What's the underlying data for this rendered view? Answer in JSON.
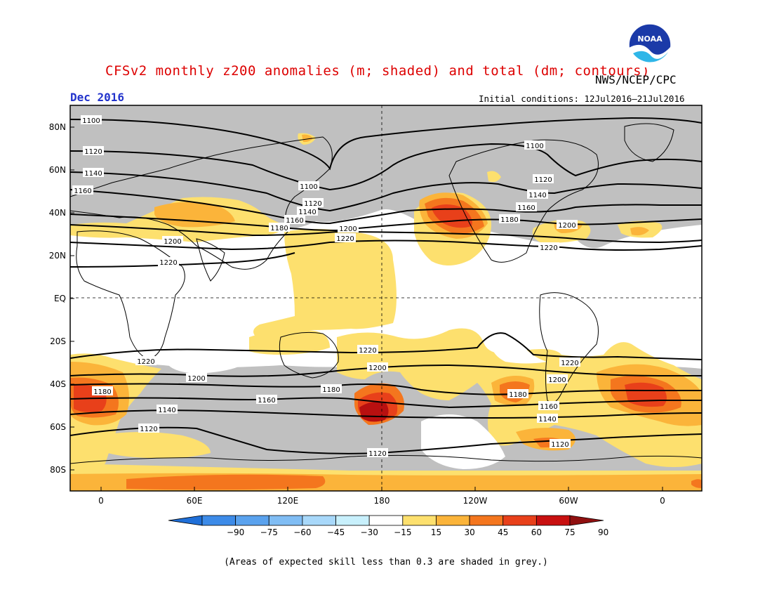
{
  "title": "CFSv2 monthly z200 anomalies (m; shaded) and total (dm; contours)",
  "organization": "NWS/NCEP/CPC",
  "logo_text": "NOAA",
  "month": "Dec 2016",
  "initial_conditions": "Initial conditions: 12Jul2016–21Jul2016",
  "footnote": "(Areas of expected skill less than 0.3 are shaded in grey.)",
  "map": {
    "latitude_labels": [
      "80N",
      "60N",
      "40N",
      "20N",
      "EQ",
      "20S",
      "40S",
      "60S",
      "80S"
    ],
    "longitude_labels": [
      "0",
      "60E",
      "120E",
      "180",
      "120W",
      "60W",
      "0"
    ],
    "contour_labels": [
      "1100",
      "1120",
      "1140",
      "1160",
      "1180",
      "1200",
      "1220"
    ],
    "colors": {
      "grey_low_skill": "#c0c0c0",
      "yellow_15_30": "#fde06e",
      "orange_30_45": "#fbb43a",
      "orange_45_60": "#f4761e",
      "red_60_75": "#e8401a",
      "darkred_75_90": "#b81010"
    }
  },
  "colorbar": {
    "tick_labels": [
      "-90",
      "-75",
      "-60",
      "-45",
      "-30",
      "-15",
      "15",
      "30",
      "45",
      "60",
      "75",
      "90"
    ],
    "colors": [
      "#1f6fd8",
      "#3d8be8",
      "#5aa2ee",
      "#80bdf4",
      "#a8d8fa",
      "#c8f0fc",
      "#ffffff",
      "#fde06e",
      "#fbb43a",
      "#f4761e",
      "#e8401a",
      "#c81010",
      "#901010"
    ]
  }
}
